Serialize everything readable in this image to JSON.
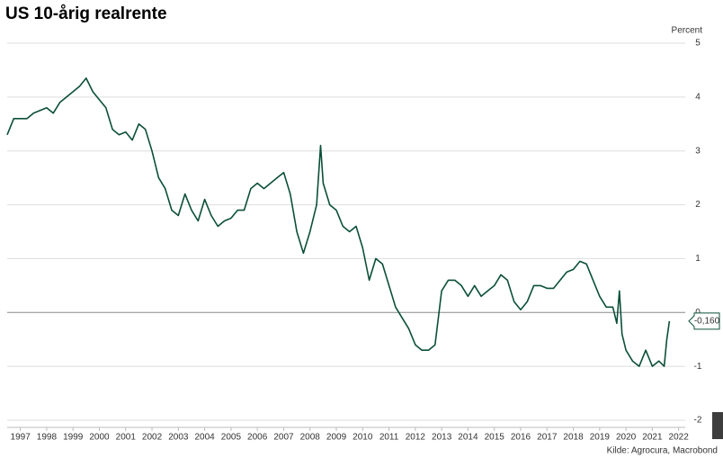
{
  "chart_data": {
    "type": "line",
    "title": "US 10-årig realrente",
    "y_axis_label": "Percent",
    "source": "Kilde: Agrocura, Macrobond",
    "x": [
      1997.0,
      1997.25,
      1997.5,
      1997.75,
      1998.0,
      1998.25,
      1998.5,
      1998.75,
      1999.0,
      1999.25,
      1999.5,
      1999.75,
      2000.0,
      2000.25,
      2000.5,
      2000.75,
      2001.0,
      2001.25,
      2001.5,
      2001.75,
      2002.0,
      2002.25,
      2002.5,
      2002.75,
      2003.0,
      2003.25,
      2003.5,
      2003.75,
      2004.0,
      2004.25,
      2004.5,
      2004.75,
      2005.0,
      2005.25,
      2005.5,
      2005.75,
      2006.0,
      2006.25,
      2006.5,
      2006.75,
      2007.0,
      2007.25,
      2007.5,
      2007.75,
      2008.0,
      2008.25,
      2008.5,
      2008.75,
      2008.9,
      2009.0,
      2009.25,
      2009.5,
      2009.75,
      2010.0,
      2010.25,
      2010.5,
      2010.75,
      2011.0,
      2011.25,
      2011.5,
      2011.75,
      2012.0,
      2012.25,
      2012.5,
      2012.75,
      2013.0,
      2013.25,
      2013.5,
      2013.75,
      2014.0,
      2014.25,
      2014.5,
      2014.75,
      2015.0,
      2015.25,
      2015.5,
      2015.75,
      2016.0,
      2016.25,
      2016.5,
      2016.75,
      2017.0,
      2017.25,
      2017.5,
      2017.75,
      2018.0,
      2018.25,
      2018.5,
      2018.75,
      2019.0,
      2019.25,
      2019.5,
      2019.75,
      2020.0,
      2020.15,
      2020.25,
      2020.35,
      2020.5,
      2020.75,
      2021.0,
      2021.25,
      2021.5,
      2021.75,
      2021.95,
      2022.05,
      2022.15
    ],
    "series": [
      {
        "name": "US 10-årig realrente",
        "color": "#0b4f3a",
        "values": [
          3.3,
          3.6,
          3.6,
          3.6,
          3.7,
          3.75,
          3.8,
          3.7,
          3.9,
          4.0,
          4.1,
          4.2,
          4.35,
          4.1,
          3.95,
          3.8,
          3.4,
          3.3,
          3.35,
          3.2,
          3.5,
          3.4,
          3.0,
          2.5,
          2.3,
          1.9,
          1.8,
          2.2,
          1.9,
          1.7,
          2.1,
          1.8,
          1.6,
          1.7,
          1.75,
          1.9,
          1.9,
          2.3,
          2.4,
          2.3,
          2.4,
          2.5,
          2.6,
          2.2,
          1.5,
          1.1,
          1.5,
          2.0,
          3.1,
          2.4,
          2.0,
          1.9,
          1.6,
          1.5,
          1.6,
          1.2,
          0.6,
          1.0,
          0.9,
          0.5,
          0.1,
          -0.1,
          -0.3,
          -0.6,
          -0.7,
          -0.7,
          -0.6,
          0.4,
          0.6,
          0.6,
          0.5,
          0.3,
          0.5,
          0.3,
          0.4,
          0.5,
          0.7,
          0.6,
          0.2,
          0.05,
          0.2,
          0.5,
          0.5,
          0.45,
          0.45,
          0.6,
          0.75,
          0.8,
          0.95,
          0.9,
          0.6,
          0.3,
          0.1,
          0.1,
          -0.2,
          0.4,
          -0.4,
          -0.7,
          -0.9,
          -1.0,
          -0.7,
          -1.0,
          -0.9,
          -1.0,
          -0.5,
          -0.16
        ]
      }
    ],
    "end_label": {
      "value": -0.16,
      "label": "-0,160"
    },
    "xlim": [
      1997.0,
      2022.75
    ],
    "xticks": [
      {
        "value": 1997.5,
        "label": "1997"
      },
      {
        "value": 1998.5,
        "label": "1998"
      },
      {
        "value": 1999.5,
        "label": "1999"
      },
      {
        "value": 2000.5,
        "label": "2000"
      },
      {
        "value": 2001.5,
        "label": "2001"
      },
      {
        "value": 2002.5,
        "label": "2002"
      },
      {
        "value": 2003.5,
        "label": "2003"
      },
      {
        "value": 2004.5,
        "label": "2004"
      },
      {
        "value": 2005.5,
        "label": "2005"
      },
      {
        "value": 2006.5,
        "label": "2006"
      },
      {
        "value": 2007.5,
        "label": "2007"
      },
      {
        "value": 2008.5,
        "label": "2008"
      },
      {
        "value": 2009.5,
        "label": "2009"
      },
      {
        "value": 2010.5,
        "label": "2010"
      },
      {
        "value": 2011.5,
        "label": "2011"
      },
      {
        "value": 2012.5,
        "label": "2012"
      },
      {
        "value": 2013.5,
        "label": "2013"
      },
      {
        "value": 2014.5,
        "label": "2014"
      },
      {
        "value": 2015.5,
        "label": "2015"
      },
      {
        "value": 2016.5,
        "label": "2016"
      },
      {
        "value": 2017.5,
        "label": "2017"
      },
      {
        "value": 2018.5,
        "label": "2018"
      },
      {
        "value": 2019.5,
        "label": "2019"
      },
      {
        "value": 2020.5,
        "label": "2020"
      },
      {
        "value": 2021.5,
        "label": "2021"
      },
      {
        "value": 2022.5,
        "label": "2022"
      }
    ],
    "ylim": [
      -2,
      5
    ],
    "yticks": [
      -2,
      -1,
      0,
      1,
      2,
      3,
      4,
      5
    ],
    "grid": true
  }
}
